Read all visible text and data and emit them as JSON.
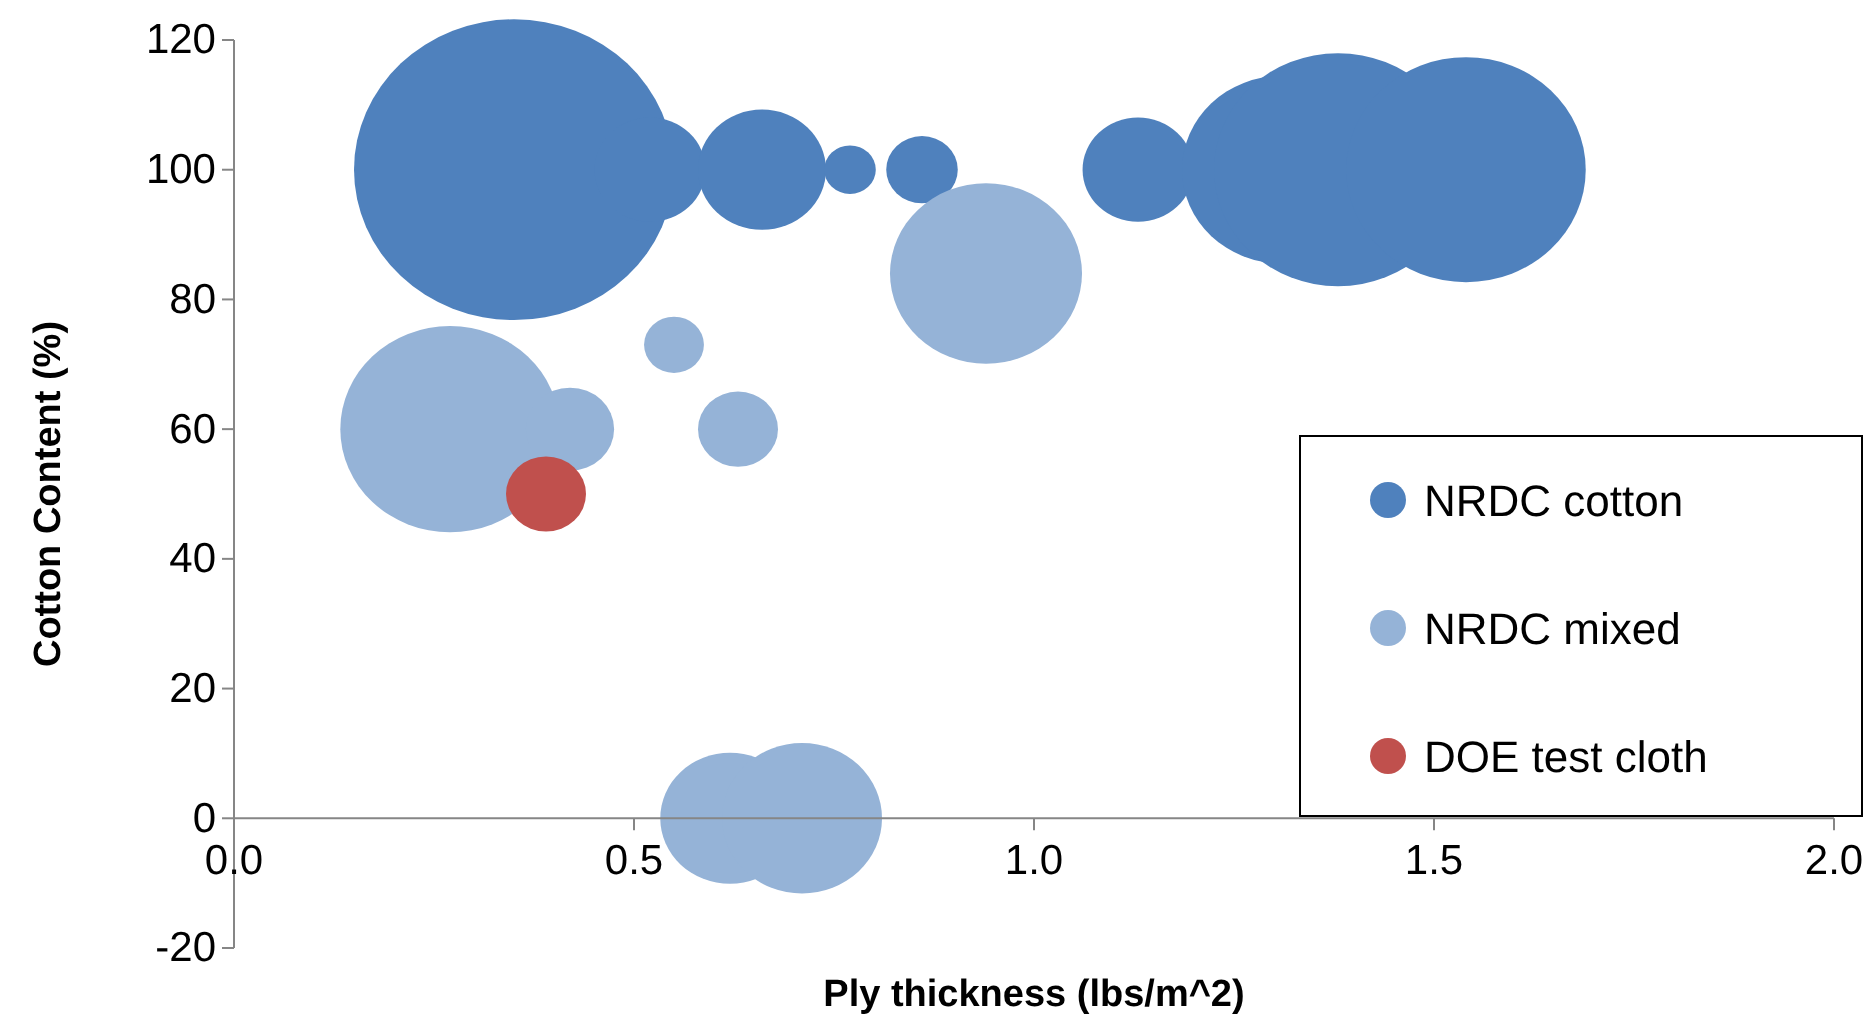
{
  "chart_data": {
    "type": "bubble",
    "xlabel": "Ply thickness (lbs/m^2)",
    "ylabel": "Cotton Content (%)",
    "xlim": [
      0,
      2
    ],
    "xticks": [
      {
        "value": 0,
        "label": "0.0"
      },
      {
        "value": 0.5,
        "label": "0.5"
      },
      {
        "value": 1,
        "label": "1.0"
      },
      {
        "value": 1.5,
        "label": "1.5"
      },
      {
        "value": 2,
        "label": "2.0"
      }
    ],
    "ylim": [
      -20,
      120
    ],
    "yticks": [
      -20,
      0,
      20,
      40,
      60,
      80,
      100,
      120
    ],
    "grid": false,
    "legend": "bottom right",
    "series": [
      {
        "name": "NRDC cotton",
        "color": "#4f81bd",
        "x": [
          0.35,
          0.52,
          0.66,
          0.77,
          0.86,
          1.13,
          1.31,
          1.38,
          1.54
        ],
        "values": [
          100,
          100,
          100,
          100,
          100,
          100,
          100,
          100,
          100
        ],
        "sizes": [
          1,
          0.12,
          0.16,
          0.026,
          0.05,
          0.12,
          0.39,
          0.6,
          0.56
        ]
      },
      {
        "name": "NRDC mixed",
        "color": "#95b3d7",
        "x": [
          0.94,
          0.27,
          0.42,
          0.55,
          0.63,
          0.62,
          0.71
        ],
        "values": [
          84,
          60,
          60,
          73,
          60,
          0,
          0
        ],
        "sizes": [
          0.36,
          0.47,
          0.076,
          0.035,
          0.0625,
          0.19,
          0.25
        ]
      },
      {
        "name": "DOE test cloth",
        "color": "#c0504d",
        "x": [
          0.39
        ],
        "values": [
          50
        ],
        "sizes": [
          0.0625
        ]
      }
    ]
  }
}
